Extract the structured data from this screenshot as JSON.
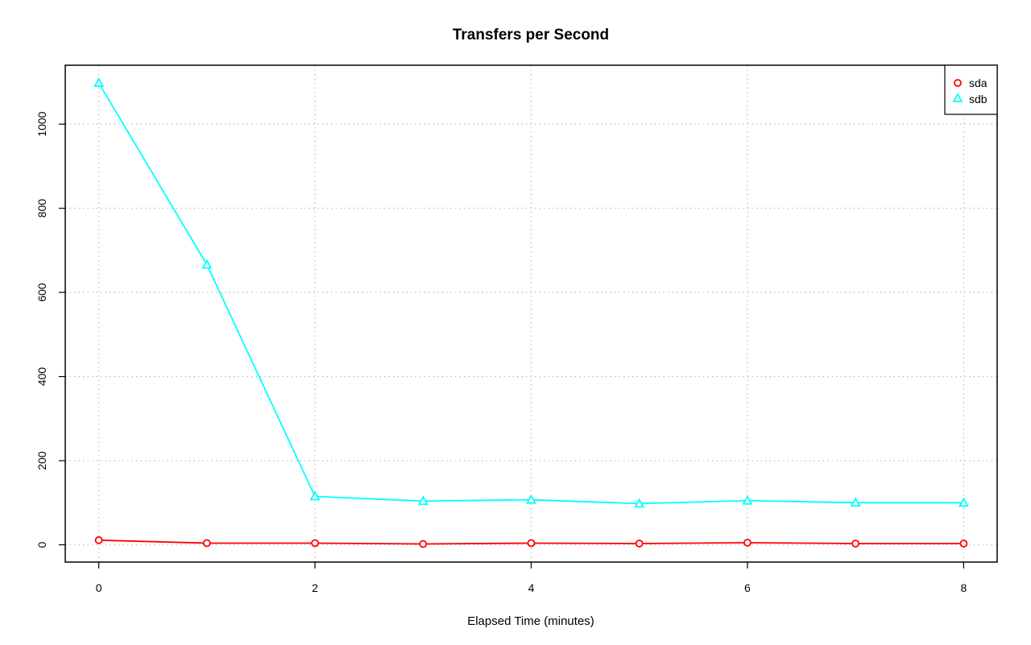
{
  "chart_data": {
    "type": "line",
    "title": "Transfers per Second",
    "xlabel": "Elapsed Time (minutes)",
    "ylabel": "",
    "xlim": [
      -0.31,
      8.31
    ],
    "ylim": [
      -41,
      1140
    ],
    "x_ticks": [
      0,
      2,
      4,
      6,
      8
    ],
    "y_ticks": [
      0,
      200,
      400,
      600,
      800,
      1000
    ],
    "grid": true,
    "legend_position": "top-right",
    "x": [
      0,
      1,
      2,
      3,
      4,
      5,
      6,
      7,
      8
    ],
    "series": [
      {
        "name": "sda",
        "color": "#ff0000",
        "marker": "circle",
        "values": [
          11,
          4,
          4,
          2,
          4,
          3,
          5,
          3,
          3
        ]
      },
      {
        "name": "sdb",
        "color": "#00ffff",
        "marker": "triangle",
        "values": [
          1098,
          666,
          115,
          104,
          107,
          98,
          105,
          100,
          100
        ]
      }
    ]
  }
}
